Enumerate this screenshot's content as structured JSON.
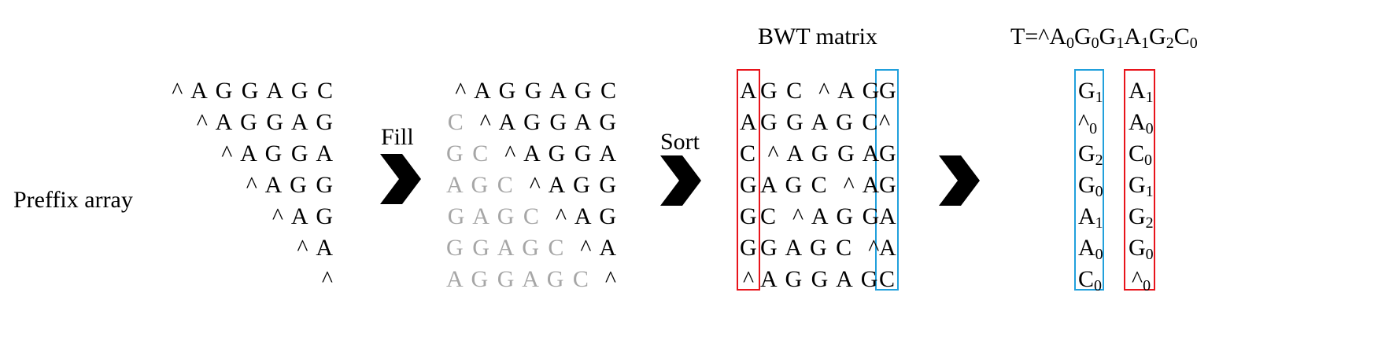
{
  "preffix": {
    "label": "Preffix array",
    "rows": [
      "^ A G G A G C",
      "^ A G G A G",
      "^ A G G A",
      "^ A G G",
      "^ A G",
      "^ A",
      "^"
    ]
  },
  "fill": {
    "label": "Fill",
    "rows": [
      {
        "gray": "",
        "black": "^ A G G A G C"
      },
      {
        "gray": "C  ",
        "black": "^ A G G A G"
      },
      {
        "gray": "G C  ",
        "black": "^ A G G A"
      },
      {
        "gray": "A G C  ",
        "black": "^ A G G"
      },
      {
        "gray": "G A G C  ",
        "black": "^ A G"
      },
      {
        "gray": "G G A G C  ",
        "black": "^ A"
      },
      {
        "gray": "A G G A G C  ",
        "black": "^"
      }
    ]
  },
  "sort": {
    "label": "Sort"
  },
  "bwt": {
    "title": "BWT matrix",
    "rows": [
      {
        "first": "A",
        "middle": "G C  ^ A G",
        "last": "G"
      },
      {
        "first": "A",
        "middle": "G G A G C",
        "last": "^"
      },
      {
        "first": "C",
        "middle": " ^ A G G A",
        "last": "G"
      },
      {
        "first": "G",
        "middle": "A G C  ^ A",
        "last": "G"
      },
      {
        "first": "G",
        "middle": "C  ^ A G G",
        "last": "A"
      },
      {
        "first": "G",
        "middle": "G A G C  ^",
        "last": "A"
      },
      {
        "first": "^",
        "middle": "A G G A G",
        "last": "C"
      }
    ]
  },
  "result": {
    "title_main": "T=^A",
    "title_parts": [
      {
        "c": "T=^A",
        "s": "0"
      },
      {
        "c": "G",
        "s": "0"
      },
      {
        "c": "G",
        "s": "1"
      },
      {
        "c": "A",
        "s": "1"
      },
      {
        "c": "G",
        "s": "2"
      },
      {
        "c": "C",
        "s": "0"
      }
    ],
    "L": [
      {
        "c": "G",
        "s": "1"
      },
      {
        "c": "^",
        "s": "0"
      },
      {
        "c": "G",
        "s": "2"
      },
      {
        "c": "G",
        "s": "0"
      },
      {
        "c": "A",
        "s": "1"
      },
      {
        "c": "A",
        "s": "0"
      },
      {
        "c": "C",
        "s": "0"
      }
    ],
    "F": [
      {
        "c": "A",
        "s": "1"
      },
      {
        "c": "A",
        "s": "0"
      },
      {
        "c": "C",
        "s": "0"
      },
      {
        "c": "G",
        "s": "1"
      },
      {
        "c": "G",
        "s": "2"
      },
      {
        "c": "G",
        "s": "0"
      },
      {
        "c": "^",
        "s": "0"
      }
    ]
  },
  "colors": {
    "red_box": "#e8141b",
    "blue_box": "#21a0dc",
    "gray_text": "#a6a6a6"
  }
}
